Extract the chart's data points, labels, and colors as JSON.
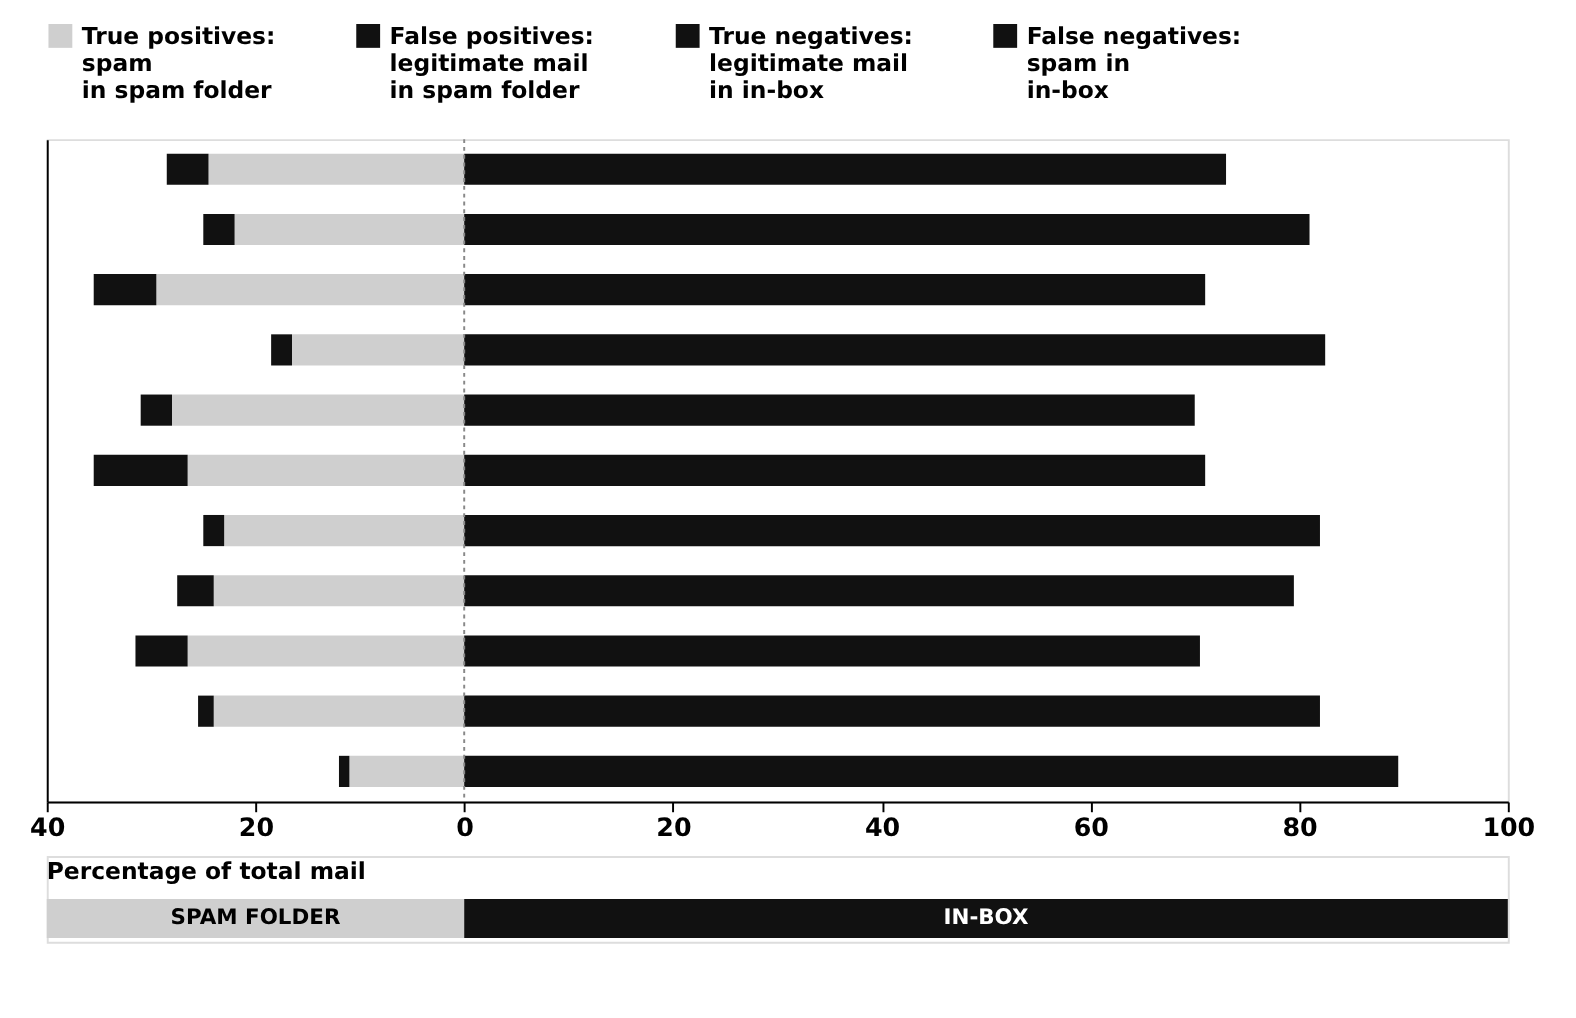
{
  "chart_data": {
    "type": "bar",
    "orientation": "horizontal",
    "stacked": true,
    "categories": [
      null,
      null,
      null,
      null,
      null,
      null,
      null,
      null,
      null,
      null,
      null
    ],
    "series": [
      {
        "name": "True positives:\nspam\nin spam folder",
        "color": "#cfcfcf",
        "values": [
          -24.5,
          -22,
          -29.5,
          -16.5,
          -28,
          -26.5,
          -23,
          -24,
          -26.5,
          -24,
          -11
        ]
      },
      {
        "name": "False positives:\nlegitimate mail\nin spam folder",
        "color": "#111111",
        "values": [
          -4,
          -3,
          -6,
          -2,
          -3,
          -9,
          -2,
          -3.5,
          -5,
          -1.5,
          -1
        ]
      },
      {
        "name": "True negatives:\nlegitimate mail\nin in-box",
        "color": "#111111",
        "values": [
          73,
          81,
          71,
          82.5,
          70,
          71,
          82,
          79.5,
          70.5,
          82,
          89.5
        ]
      },
      {
        "name": "False negatives:\nspam in\nin-box",
        "color": "#111111",
        "values": [
          null,
          null,
          null,
          null,
          null,
          null,
          null,
          null,
          null,
          null,
          null
        ]
      }
    ],
    "xlim": [
      -40,
      100
    ],
    "xticks": [
      {
        "value": -40,
        "label": "40"
      },
      {
        "value": -20,
        "label": "20"
      },
      0,
      20,
      40,
      60,
      80,
      100
    ],
    "xlabel": "Percentage of total mail",
    "ref_lines": [
      {
        "axis": "x",
        "value": 0,
        "line_style": "dotted",
        "color": "#888888"
      }
    ],
    "annotations": [
      "SPAM FOLDER",
      "IN-BOX"
    ],
    "legend": "top",
    "grid": false
  }
}
